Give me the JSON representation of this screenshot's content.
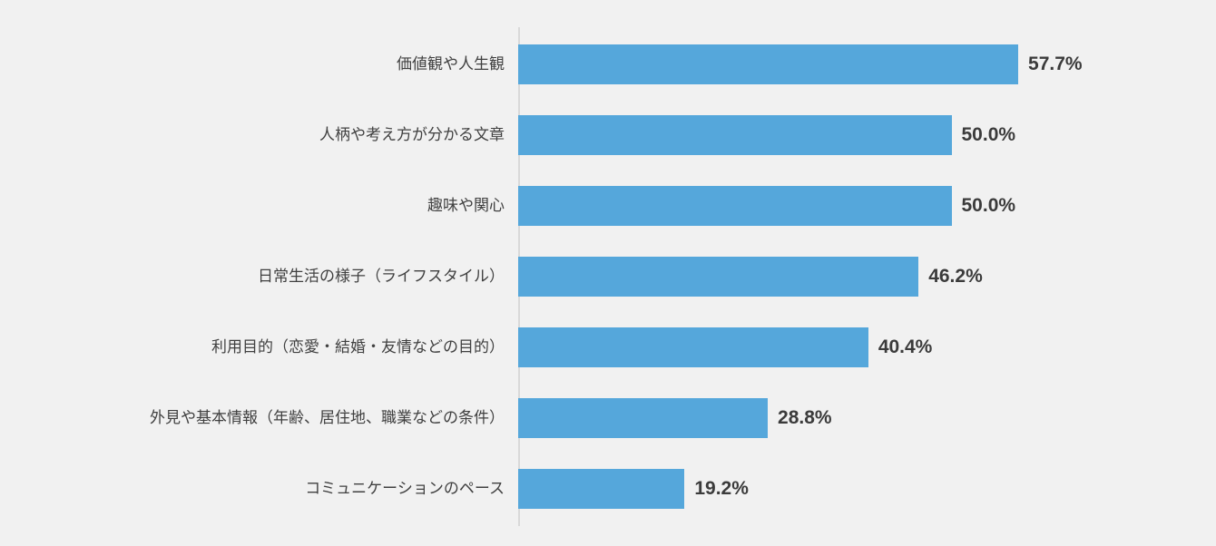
{
  "chart_data": {
    "type": "bar",
    "orientation": "horizontal",
    "title": "",
    "xlabel": "",
    "ylabel": "",
    "categories": [
      "価値観や人生観",
      "人柄や考え方が分かる文章",
      "趣味や関心",
      "日常生活の様子（ライフスタイル）",
      "利用目的（恋愛・結婚・友情などの目的）",
      "外見や基本情報（年齢、居住地、職業などの条件）",
      "コミュニケーションのペース"
    ],
    "values": [
      57.7,
      50.0,
      50.0,
      46.2,
      40.4,
      28.8,
      19.2
    ],
    "value_labels": [
      "57.7%",
      "50.0%",
      "50.0%",
      "46.2%",
      "40.4%",
      "28.8%",
      "19.2%"
    ],
    "xlim": [
      0,
      80
    ],
    "grid": false,
    "legend": null,
    "colors": {
      "bar": "#55A7DB",
      "background": "#F1F1F1",
      "axis_line": "#D9D9D9",
      "category_text": "#404040",
      "value_text": "#3B3B3B"
    }
  }
}
